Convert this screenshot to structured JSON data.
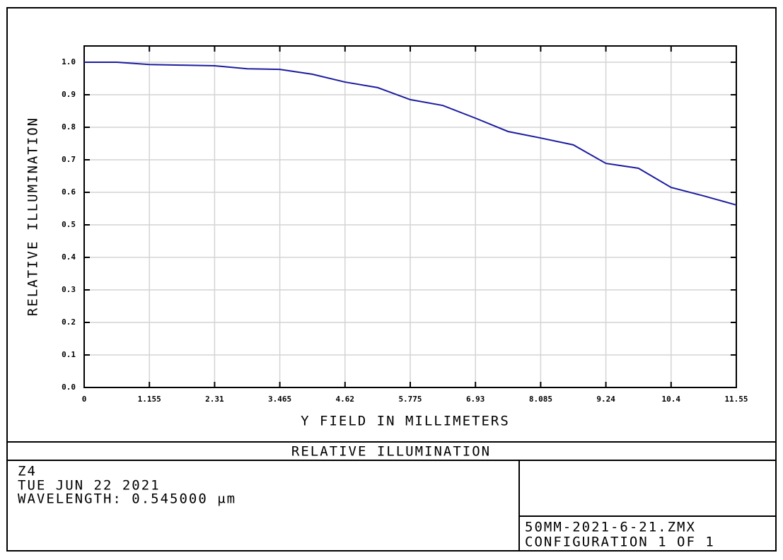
{
  "chart_data": {
    "type": "line",
    "title": "RELATIVE ILLUMINATION",
    "x_label": "Y FIELD IN MILLIMETERS",
    "y_label": "RELATIVE ILLUMINATION",
    "x": [
      0,
      0.5775,
      1.155,
      1.7325,
      2.31,
      2.8875,
      3.465,
      4.0425,
      4.62,
      5.1975,
      5.775,
      6.3525,
      6.93,
      7.5075,
      8.085,
      8.6625,
      9.24,
      9.8175,
      10.395,
      10.9725,
      11.55
    ],
    "values": [
      1.0,
      1.0,
      0.993,
      0.991,
      0.989,
      0.98,
      0.978,
      0.963,
      0.939,
      0.922,
      0.885,
      0.867,
      0.828,
      0.787,
      0.767,
      0.746,
      0.689,
      0.674,
      0.615,
      0.589,
      0.561
    ],
    "color": "#1c1ca0",
    "xlim": [
      0,
      11.55
    ],
    "ylim": [
      0,
      1.05
    ],
    "xticks": [
      0,
      1.155,
      2.31,
      3.465,
      4.62,
      5.775,
      6.93,
      8.085,
      9.24,
      {
        "value": 10.395,
        "label": "10.4"
      },
      11.55
    ],
    "yticks": [
      {
        "value": 0,
        "label": "0.0"
      },
      0.1,
      0.2,
      0.3,
      0.4,
      0.5,
      0.6,
      0.7,
      0.8,
      0.9,
      {
        "value": 1,
        "label": "1.0"
      }
    ],
    "grid": true
  },
  "footer": {
    "info": [
      "Z4",
      "TUE JUN 22 2021",
      "WAVELENGTH: 0.545000 μm"
    ],
    "file": [
      "50MM-2021-6-21.ZMX",
      "CONFIGURATION 1 OF 1"
    ]
  }
}
